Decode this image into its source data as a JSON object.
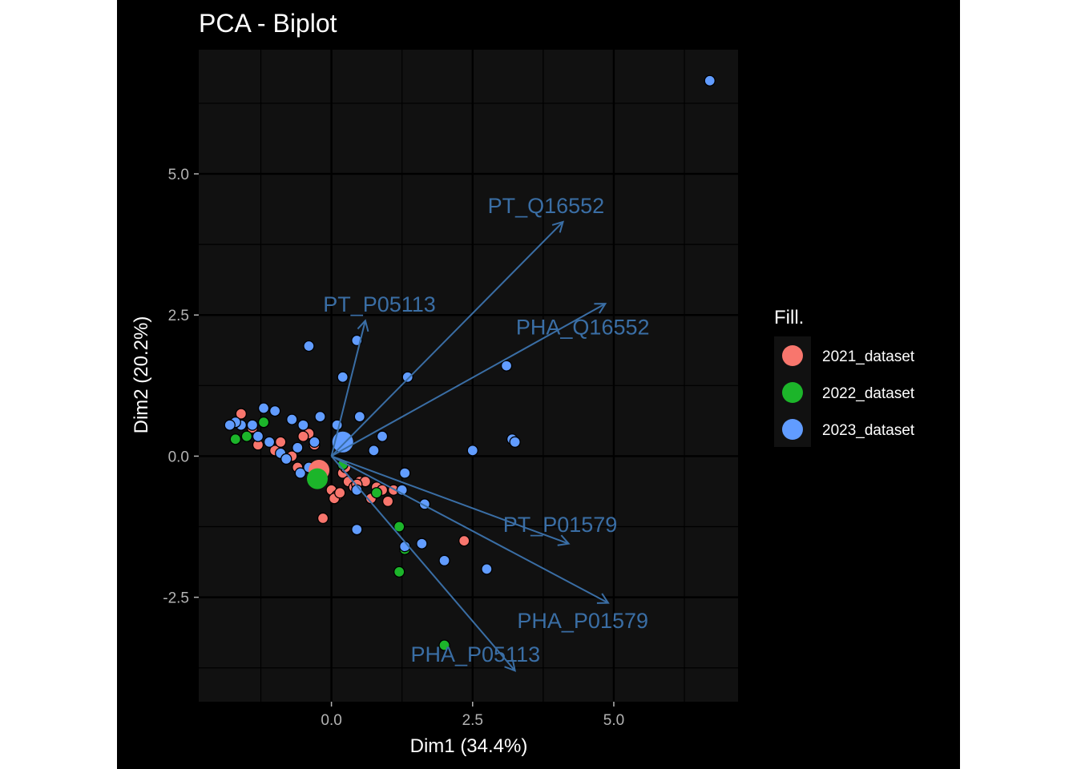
{
  "chart_data": {
    "type": "scatter",
    "title": "PCA - Biplot",
    "xlabel": "Dim1 (34.4%)",
    "ylabel": "Dim2 (20.2%)",
    "xlim": [
      -2.35,
      7.2
    ],
    "ylim": [
      -4.35,
      7.2
    ],
    "xticks": [
      0.0,
      2.5,
      5.0
    ],
    "xtick_labels": [
      "0.0",
      "2.5",
      "5.0"
    ],
    "yticks": [
      -2.5,
      0.0,
      2.5,
      5.0
    ],
    "ytick_labels": [
      "-2.5",
      "0.0",
      "2.5",
      "5.0"
    ],
    "grid": true,
    "legend": {
      "title": "Fill.",
      "position": "right",
      "entries": [
        {
          "label": "2021_dataset",
          "color": "#f8766d"
        },
        {
          "label": "2022_dataset",
          "color": "#1cb52a"
        },
        {
          "label": "2023_dataset",
          "color": "#619cff"
        }
      ]
    },
    "arrow_color": "#3a6ea5",
    "loadings": [
      {
        "name": "PT_Q16552",
        "x": 4.1,
        "y": 4.15,
        "label_x": 3.8,
        "label_y": 4.45
      },
      {
        "name": "PT_P05113",
        "x": 0.6,
        "y": 2.4,
        "label_x": 0.85,
        "label_y": 2.7
      },
      {
        "name": "PHA_Q16552",
        "x": 4.85,
        "y": 2.7,
        "label_x": 4.45,
        "label_y": 2.3
      },
      {
        "name": "PT_P01579",
        "x": 4.2,
        "y": -1.55,
        "label_x": 4.05,
        "label_y": -1.2
      },
      {
        "name": "PHA_P01579",
        "x": 4.9,
        "y": -2.6,
        "label_x": 4.45,
        "label_y": -2.9
      },
      {
        "name": "PHA_P05113",
        "x": 3.25,
        "y": -3.8,
        "label_x": 2.55,
        "label_y": -3.5
      }
    ],
    "series": [
      {
        "name": "2021_dataset",
        "color": "#f8766d",
        "x": [
          -1.6,
          -1.4,
          -1.3,
          -1.2,
          -1.0,
          -0.9,
          -0.8,
          -0.7,
          -0.6,
          -0.4,
          -0.3,
          -0.2,
          0.0,
          0.1,
          0.2,
          0.3,
          0.4,
          0.5,
          0.6,
          0.8,
          0.9,
          1.0,
          1.1,
          1.3,
          2.35,
          -0.15,
          0.05,
          0.15,
          0.25,
          0.45,
          0.7,
          -0.5
        ],
        "y": [
          0.75,
          0.5,
          0.2,
          0.6,
          0.1,
          0.25,
          -0.05,
          0.0,
          -0.2,
          0.4,
          0.2,
          -0.3,
          -0.6,
          -0.7,
          -0.3,
          -0.45,
          -0.55,
          -0.45,
          -0.45,
          -0.55,
          -0.6,
          -0.8,
          -0.6,
          -1.6,
          -1.5,
          -1.1,
          -0.75,
          -0.65,
          -0.2,
          -0.5,
          -0.75,
          0.35
        ]
      },
      {
        "name": "2022_dataset",
        "color": "#1cb52a",
        "x": [
          -1.7,
          -1.5,
          -1.2,
          0.2,
          0.8,
          1.2,
          1.3,
          1.2,
          2.0
        ],
        "y": [
          0.3,
          0.35,
          0.6,
          -0.15,
          -0.65,
          -1.25,
          -1.65,
          -2.05,
          -3.35
        ]
      },
      {
        "name": "2023_dataset",
        "color": "#619cff",
        "x": [
          6.7,
          -0.4,
          0.45,
          0.2,
          1.35,
          3.1,
          0.5,
          0.1,
          -0.2,
          -0.5,
          -0.7,
          -0.9,
          -1.0,
          -1.1,
          -1.3,
          -1.4,
          -1.6,
          -1.7,
          -1.8,
          -1.2,
          -0.8,
          -0.6,
          -0.55,
          -0.4,
          -0.3,
          0.9,
          0.75,
          2.5,
          3.2,
          3.25,
          1.3,
          1.25,
          1.65,
          1.3,
          1.6,
          2.0,
          2.75,
          0.45,
          0.45
        ],
        "y": [
          6.65,
          1.95,
          2.05,
          1.4,
          1.4,
          1.6,
          0.7,
          0.55,
          0.7,
          0.55,
          0.65,
          0.05,
          0.8,
          0.25,
          0.35,
          0.55,
          0.55,
          0.6,
          0.55,
          0.85,
          -0.05,
          0.15,
          -0.3,
          -0.2,
          0.25,
          0.35,
          0.1,
          0.1,
          0.3,
          0.25,
          -0.3,
          -0.6,
          -0.85,
          -1.6,
          -1.55,
          -1.85,
          -2.0,
          -1.3,
          -0.6
        ]
      }
    ],
    "centroids": [
      {
        "series": "2021_dataset",
        "x": -0.22,
        "y": -0.25,
        "color": "#f8766d"
      },
      {
        "series": "2022_dataset",
        "x": -0.25,
        "y": -0.4,
        "color": "#1cb52a"
      },
      {
        "series": "2023_dataset",
        "x": 0.2,
        "y": 0.25,
        "color": "#619cff"
      }
    ]
  }
}
